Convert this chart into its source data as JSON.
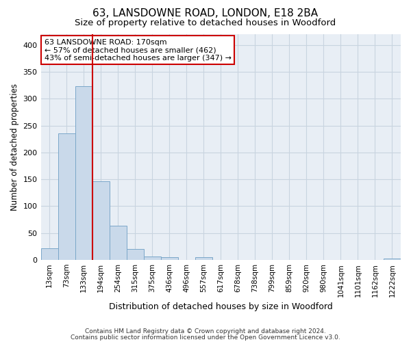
{
  "title1": "63, LANSDOWNE ROAD, LONDON, E18 2BA",
  "title2": "Size of property relative to detached houses in Woodford",
  "xlabel": "Distribution of detached houses by size in Woodford",
  "ylabel": "Number of detached properties",
  "bin_labels": [
    "13sqm",
    "73sqm",
    "133sqm",
    "194sqm",
    "254sqm",
    "315sqm",
    "375sqm",
    "436sqm",
    "496sqm",
    "557sqm",
    "617sqm",
    "678sqm",
    "738sqm",
    "799sqm",
    "859sqm",
    "920sqm",
    "980sqm",
    "1041sqm",
    "1101sqm",
    "1162sqm",
    "1222sqm"
  ],
  "bar_values": [
    22,
    235,
    323,
    147,
    64,
    21,
    7,
    5,
    0,
    5,
    0,
    0,
    0,
    0,
    0,
    0,
    0,
    0,
    0,
    0,
    3
  ],
  "bar_color": "#c9d9ea",
  "bar_edge_color": "#7ba7c9",
  "grid_color": "#c8d4e0",
  "background_color": "#e8eef5",
  "vline_x": 3.0,
  "vline_color": "#cc0000",
  "annotation_text": "63 LANSDOWNE ROAD: 170sqm\n← 57% of detached houses are smaller (462)\n43% of semi-detached houses are larger (347) →",
  "annotation_box_color": "#ffffff",
  "annotation_box_edge": "#cc0000",
  "footer1": "Contains HM Land Registry data © Crown copyright and database right 2024.",
  "footer2": "Contains public sector information licensed under the Open Government Licence v3.0.",
  "ylim": [
    0,
    420
  ],
  "yticks": [
    0,
    50,
    100,
    150,
    200,
    250,
    300,
    350,
    400
  ],
  "title1_fontsize": 11,
  "title2_fontsize": 9.5,
  "ylabel_fontsize": 8.5,
  "xlabel_fontsize": 9,
  "tick_fontsize": 7.5,
  "footer_fontsize": 6.5
}
